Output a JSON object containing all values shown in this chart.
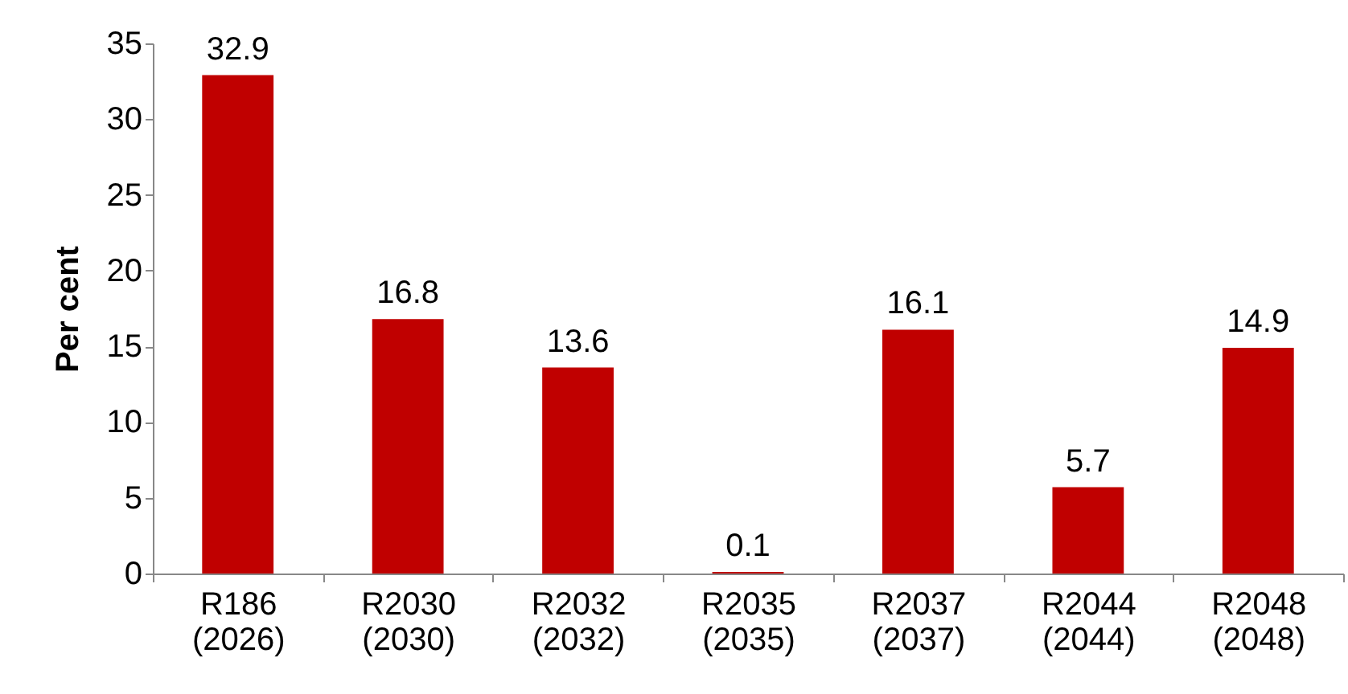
{
  "chart_data": {
    "type": "bar",
    "ylabel": "Per cent",
    "categories": [
      "R186 (2026)",
      "R2030 (2030)",
      "R2032 (2032)",
      "R2035 (2035)",
      "R2037 (2037)",
      "R2044 (2044)",
      "R2048 (2048)"
    ],
    "values": [
      32.9,
      16.8,
      13.6,
      0.1,
      16.1,
      5.7,
      14.9
    ],
    "color": "#c00000",
    "ylim": [
      0,
      35
    ],
    "yticks": [
      0,
      5,
      10,
      15,
      20,
      25,
      30,
      35
    ],
    "grid": false,
    "data_labels": true
  }
}
